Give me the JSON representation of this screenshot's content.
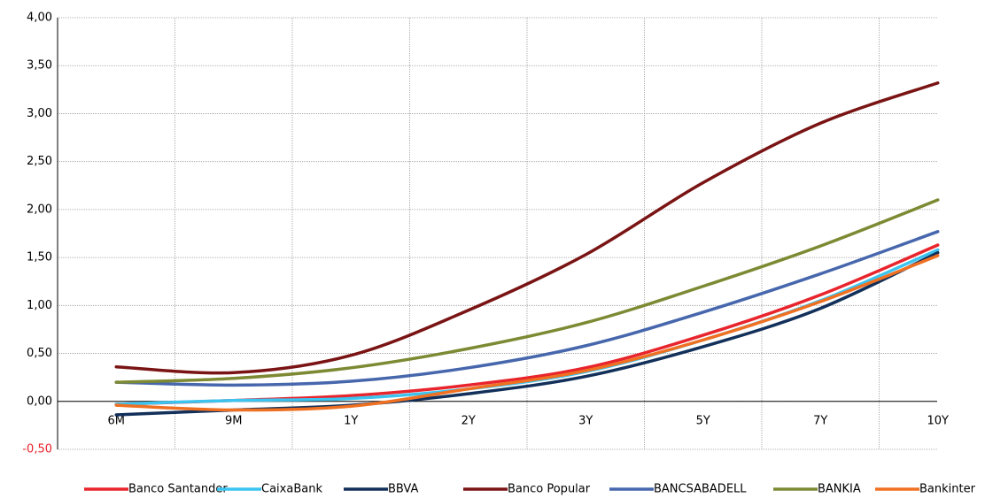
{
  "chart_data": {
    "type": "line",
    "categories": [
      "6M",
      "9M",
      "1Y",
      "2Y",
      "3Y",
      "5Y",
      "7Y",
      "10Y"
    ],
    "series": [
      {
        "name": "Banco Santander",
        "color": "#e8242c",
        "values": [
          -0.03,
          0.01,
          0.06,
          0.17,
          0.35,
          0.69,
          1.11,
          1.63
        ]
      },
      {
        "name": "CaixaBank",
        "color": "#3cc4f0",
        "values": [
          -0.03,
          0.01,
          0.03,
          0.13,
          0.31,
          0.64,
          1.05,
          1.58
        ]
      },
      {
        "name": "BBVA",
        "color": "#12305a",
        "values": [
          -0.14,
          -0.09,
          -0.04,
          0.08,
          0.26,
          0.57,
          0.97,
          1.55
        ]
      },
      {
        "name": "Banco Popular",
        "color": "#7a1414",
        "values": [
          0.36,
          0.3,
          0.48,
          0.95,
          1.53,
          2.28,
          2.9,
          3.32
        ]
      },
      {
        "name": "BANCSABADELL",
        "color": "#4767ad",
        "values": [
          0.2,
          0.17,
          0.21,
          0.35,
          0.58,
          0.93,
          1.33,
          1.77
        ]
      },
      {
        "name": "BANKIA",
        "color": "#7d8a33",
        "values": [
          0.2,
          0.24,
          0.35,
          0.55,
          0.82,
          1.2,
          1.62,
          2.1
        ]
      },
      {
        "name": "Bankinter",
        "color": "#f07022",
        "values": [
          -0.04,
          -0.09,
          -0.05,
          0.13,
          0.32,
          0.64,
          1.04,
          1.52
        ]
      }
    ],
    "ylim": [
      -0.5,
      4.0
    ],
    "yticks": [
      {
        "value": -0.5,
        "label": "-0,50"
      },
      {
        "value": 0,
        "label": "0,00"
      },
      {
        "value": 0.5,
        "label": "0,50"
      },
      {
        "value": 1.0,
        "label": "1,00"
      },
      {
        "value": 1.5,
        "label": "1,50"
      },
      {
        "value": 2.0,
        "label": "2,00"
      },
      {
        "value": 2.5,
        "label": "2,50"
      },
      {
        "value": 3.0,
        "label": "3,00"
      },
      {
        "value": 3.5,
        "label": "3,50"
      },
      {
        "value": 4.0,
        "label": "4,00"
      }
    ],
    "grid": true,
    "legend": "bottom"
  }
}
